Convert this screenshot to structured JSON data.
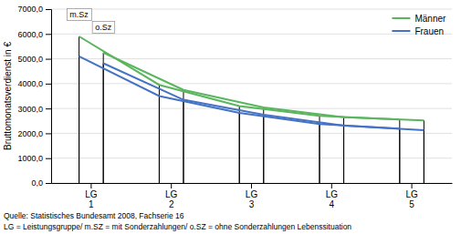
{
  "chart_data": {
    "type": "line",
    "categories": [
      "LG\n1",
      "LG\n2",
      "LG\n3",
      "LG\n4",
      "LG\n5"
    ],
    "annotations": [
      "m.Sz",
      "o.Sz"
    ],
    "series": [
      {
        "name": "Männer",
        "color": "#5ab55e",
        "subseries": [
          {
            "values": [
              5900,
              3950,
              3100,
              2700,
              2560
            ]
          },
          {
            "values": [
              5250,
              3750,
              3040,
              2650,
              2520
            ]
          }
        ]
      },
      {
        "name": "Frauen",
        "color": "#4472c4",
        "subseries": [
          {
            "values": [
              5100,
              3500,
              2820,
              2370,
              2190
            ]
          },
          {
            "values": [
              4820,
              3350,
              2750,
              2310,
              2130
            ]
          }
        ]
      }
    ],
    "color": "#000000",
    "ylabel": "Bruttomonatsverdienst in €",
    "ylim": [
      0,
      7000
    ],
    "yticks": [
      {
        "value": 0,
        "label": "0,0"
      },
      {
        "value": 1000,
        "label": "1000,0"
      },
      {
        "value": 2000,
        "label": "2000,0"
      },
      {
        "value": 3000,
        "label": "3000,0"
      },
      {
        "value": 4000,
        "label": "4000,0"
      },
      {
        "value": 5000,
        "label": "5000,0"
      },
      {
        "value": 6000,
        "label": "6000,0"
      },
      {
        "value": 7000,
        "label": "7000,0"
      }
    ],
    "grid": true,
    "legend": "upper right",
    "footnotes": [
      "Quelle: Statistisches Bundesamt 2008, Fachserie 16",
      "LG = Leistungsgruppe/ m.SZ = mit Sonderzahlungen/ o.SZ = ohne Sonderzahlungen Lebenssituation"
    ]
  }
}
